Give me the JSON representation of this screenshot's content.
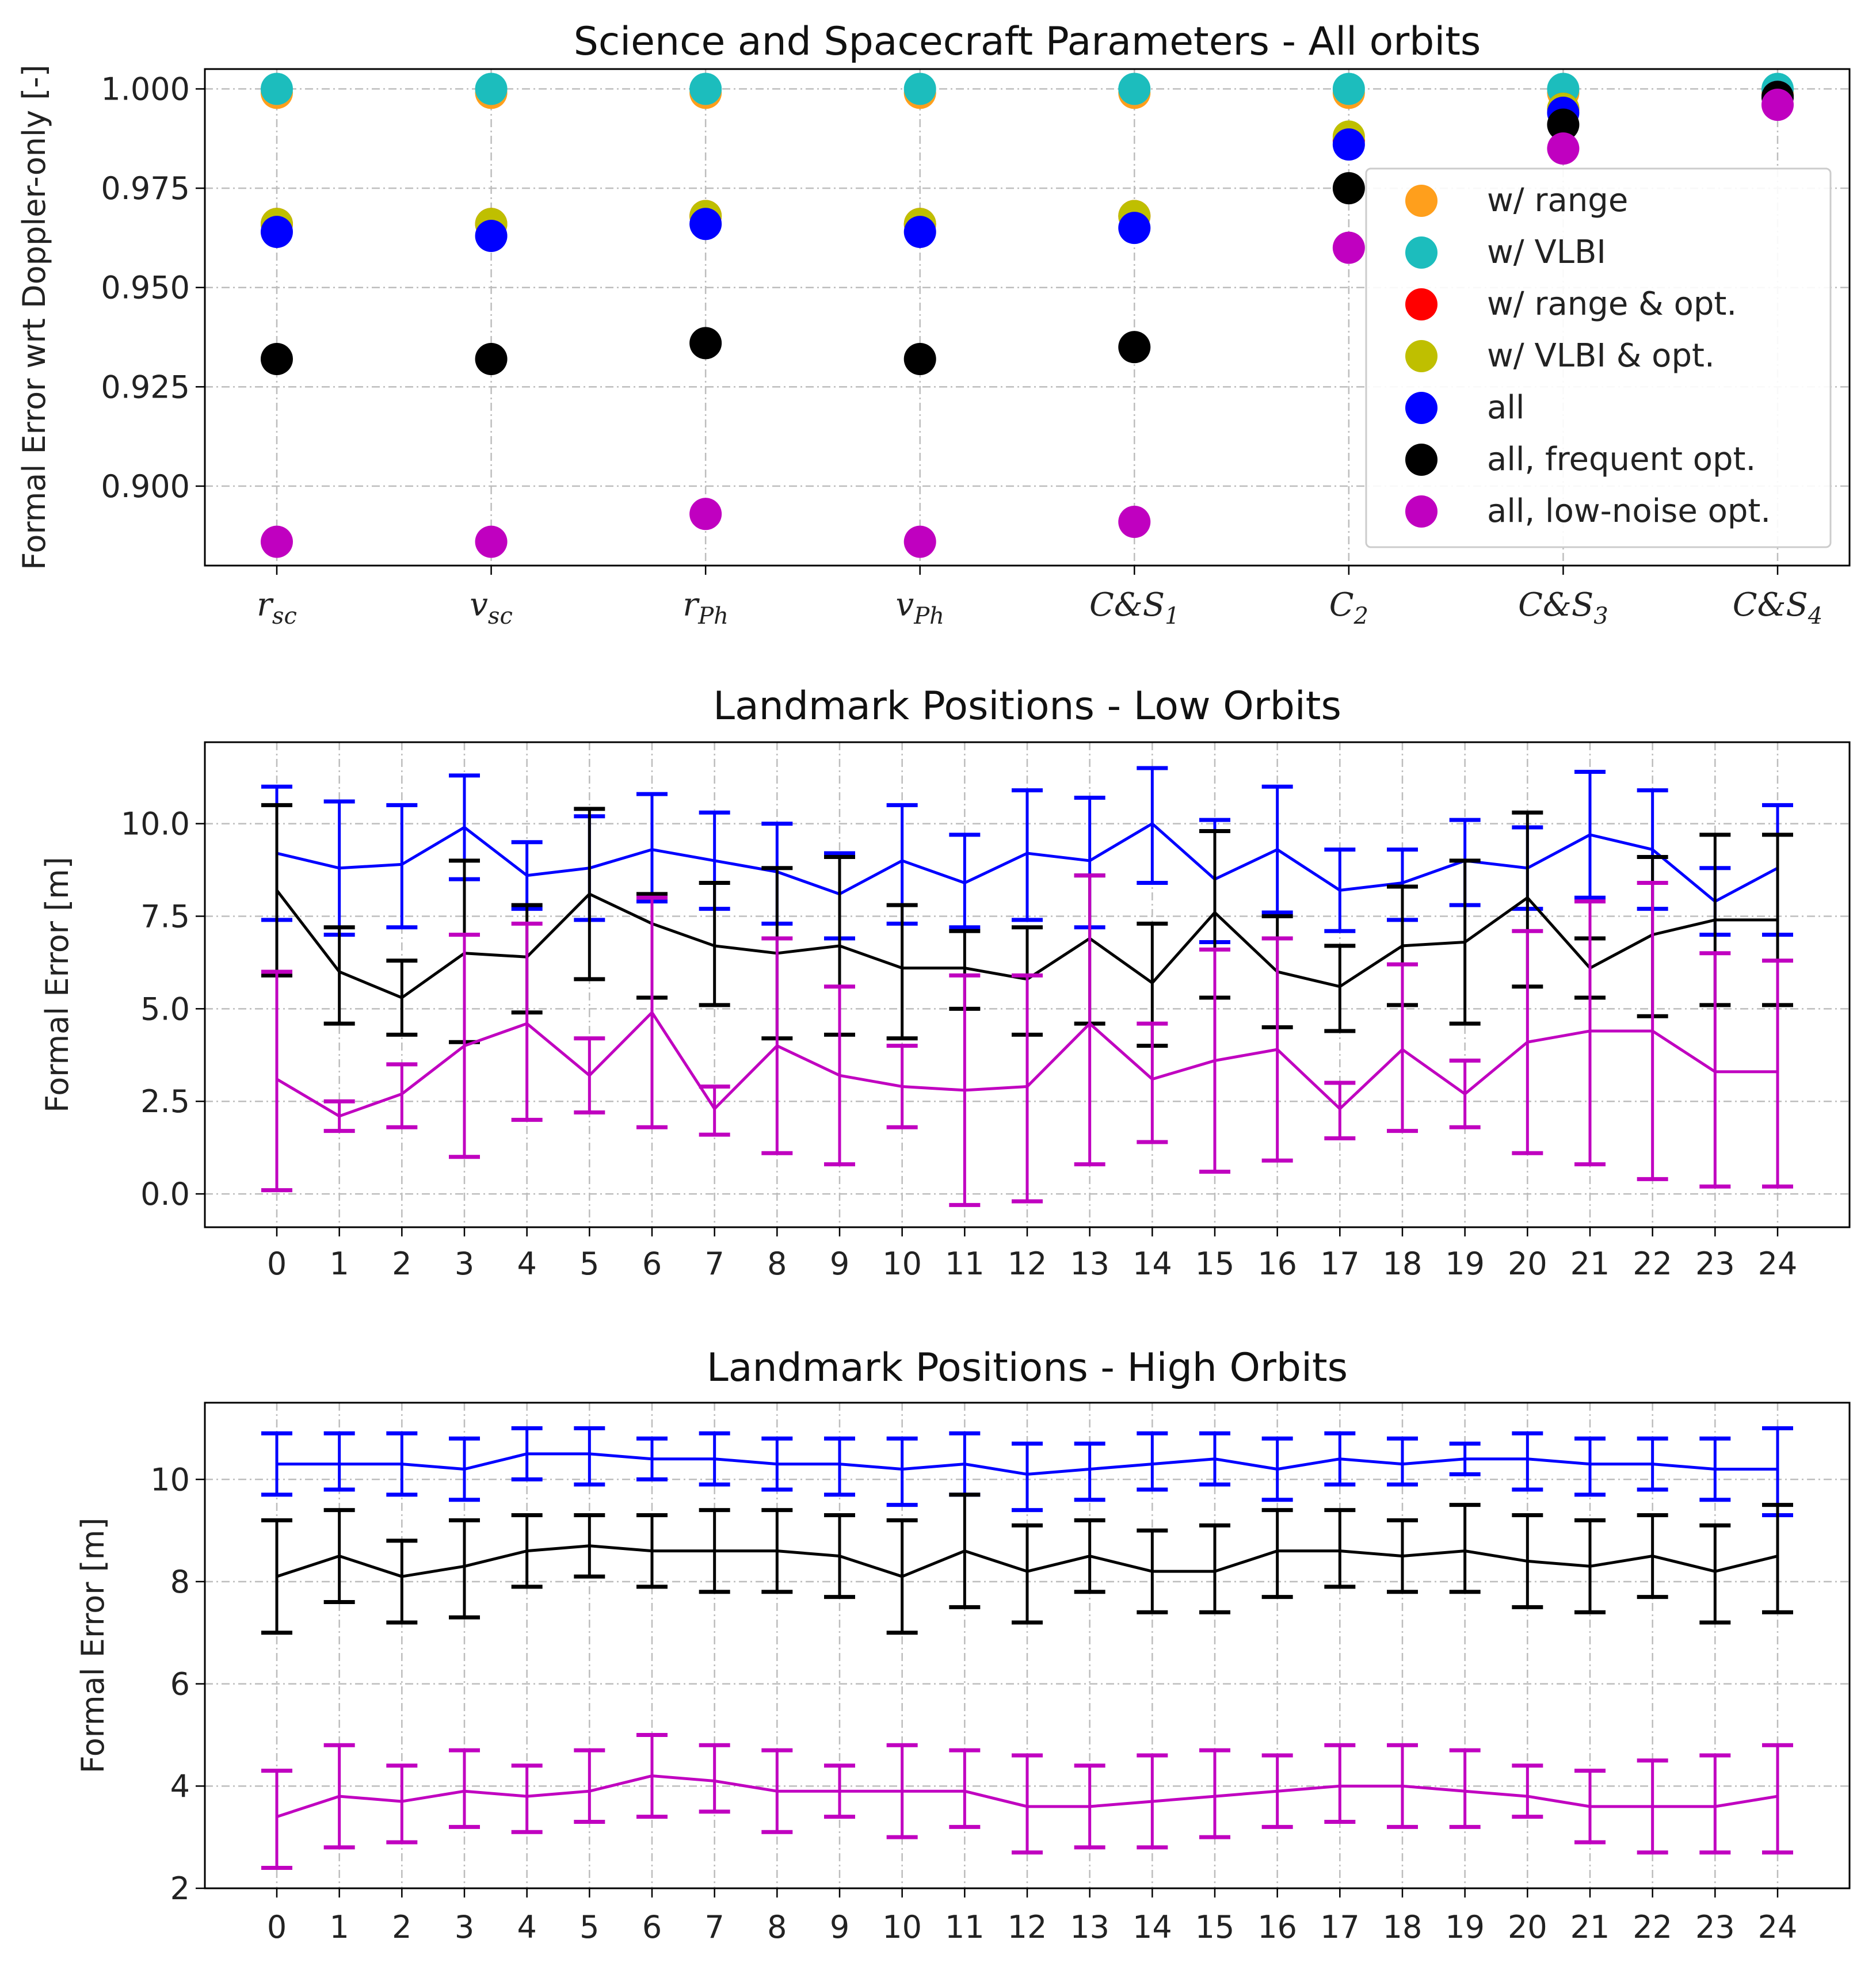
{
  "chart_data": [
    {
      "type": "scatter",
      "title": "Science and Spacecraft Parameters - All orbits",
      "xlabel": "",
      "ylabel": "Formal Error wrt Doppler-only [-]",
      "ylim": [
        0.88,
        1.005
      ],
      "yticks": [
        "0.900",
        "0.925",
        "0.950",
        "0.975",
        "1.000"
      ],
      "yticks_values": [
        0.9,
        0.925,
        0.95,
        0.975,
        1.0
      ],
      "categories": [
        {
          "main": "r",
          "sub": "sc"
        },
        {
          "main": "v",
          "sub": "sc"
        },
        {
          "main": "r",
          "sub": "Ph"
        },
        {
          "main": "v",
          "sub": "Ph"
        },
        {
          "main": "C&S",
          "sub": "1"
        },
        {
          "main": "C",
          "sub": "2"
        },
        {
          "main": "C&S",
          "sub": "3"
        },
        {
          "main": "C&S",
          "sub": "4"
        }
      ],
      "series": [
        {
          "name": "w/ range",
          "color": "#ff9f1c",
          "values": [
            0.999,
            0.999,
            0.999,
            0.999,
            0.999,
            0.999,
            0.999,
            0.999
          ]
        },
        {
          "name": "w/ VLBI",
          "color": "#1cbdbd",
          "values": [
            1.0,
            1.0,
            1.0,
            1.0,
            1.0,
            1.0,
            1.0,
            1.0
          ]
        },
        {
          "name": "w/ range & opt.",
          "color": "#ff0000",
          "values": [
            0.966,
            0.966,
            0.968,
            0.966,
            0.968,
            0.987,
            0.995,
            0.998
          ]
        },
        {
          "name": "w/ VLBI & opt.",
          "color": "#bfbf00",
          "values": [
            0.966,
            0.966,
            0.968,
            0.966,
            0.968,
            0.988,
            0.995,
            0.998
          ]
        },
        {
          "name": "all",
          "color": "#0000ff",
          "values": [
            0.964,
            0.963,
            0.966,
            0.964,
            0.965,
            0.986,
            0.994,
            0.998
          ]
        },
        {
          "name": "all, frequent opt.",
          "color": "#000000",
          "values": [
            0.932,
            0.932,
            0.936,
            0.932,
            0.935,
            0.975,
            0.991,
            0.998
          ]
        },
        {
          "name": "all, low-noise opt.",
          "color": "#c000c0",
          "values": [
            0.886,
            0.886,
            0.893,
            0.886,
            0.891,
            0.96,
            0.985,
            0.996
          ]
        }
      ],
      "legend_position": "upper-right"
    },
    {
      "type": "line",
      "title": "Landmark Positions - Low Orbits",
      "xlabel": "",
      "ylabel": "Formal Error [m]",
      "ylim": [
        -0.9,
        12.2
      ],
      "yticks": [
        "0.0",
        "2.5",
        "5.0",
        "7.5",
        "10.0"
      ],
      "yticks_values": [
        0,
        2.5,
        5,
        7.5,
        10
      ],
      "x": [
        0,
        1,
        2,
        3,
        4,
        5,
        6,
        7,
        8,
        9,
        10,
        11,
        12,
        13,
        14,
        15,
        16,
        17,
        18,
        19,
        20,
        21,
        22,
        23,
        24
      ],
      "series": [
        {
          "name": "all",
          "color": "#0000ff",
          "values": [
            9.2,
            8.8,
            8.9,
            9.9,
            8.6,
            8.8,
            9.3,
            9.0,
            8.7,
            8.1,
            9.0,
            8.4,
            9.2,
            9.0,
            10.0,
            8.5,
            9.3,
            8.2,
            8.4,
            9.0,
            8.8,
            9.7,
            9.3,
            7.9,
            8.8
          ],
          "lower": [
            7.4,
            7.0,
            7.2,
            8.5,
            7.7,
            7.4,
            7.9,
            7.7,
            7.3,
            6.9,
            7.3,
            7.2,
            7.4,
            7.2,
            8.4,
            6.8,
            7.6,
            7.1,
            7.4,
            7.8,
            7.7,
            8.0,
            7.7,
            7.0,
            7.0
          ],
          "upper": [
            11.0,
            10.6,
            10.5,
            11.3,
            9.5,
            10.2,
            10.8,
            10.3,
            10.0,
            9.2,
            10.5,
            9.7,
            10.9,
            10.7,
            11.5,
            10.1,
            11.0,
            9.3,
            9.3,
            10.1,
            9.9,
            11.4,
            10.9,
            8.8,
            10.5
          ]
        },
        {
          "name": "all, frequent opt.",
          "color": "#000000",
          "values": [
            8.2,
            6.0,
            5.3,
            6.5,
            6.4,
            8.1,
            7.3,
            6.7,
            6.5,
            6.7,
            6.1,
            6.1,
            5.8,
            6.9,
            5.7,
            7.6,
            6.0,
            5.6,
            6.7,
            6.8,
            8.0,
            6.1,
            7.0,
            7.4,
            7.4
          ],
          "lower": [
            5.9,
            4.6,
            4.3,
            4.1,
            4.9,
            5.8,
            5.3,
            5.1,
            4.2,
            4.3,
            4.2,
            5.0,
            4.3,
            4.6,
            4.0,
            5.3,
            4.5,
            4.4,
            5.1,
            4.6,
            5.6,
            5.3,
            4.8,
            5.1,
            5.1
          ],
          "upper": [
            10.5,
            7.2,
            6.3,
            9.0,
            7.8,
            10.4,
            8.1,
            8.4,
            8.8,
            9.1,
            7.8,
            7.1,
            7.2,
            8.6,
            7.3,
            9.8,
            7.5,
            6.7,
            8.3,
            9.0,
            10.3,
            6.9,
            9.1,
            9.7,
            9.7
          ]
        },
        {
          "name": "all, low-noise opt.",
          "color": "#c000c0",
          "values": [
            3.1,
            2.1,
            2.7,
            4.0,
            4.6,
            3.2,
            4.9,
            2.3,
            4.0,
            3.2,
            2.9,
            2.8,
            2.9,
            4.6,
            3.1,
            3.6,
            3.9,
            2.3,
            3.9,
            2.7,
            4.1,
            4.4,
            4.4,
            3.3,
            3.3
          ],
          "lower": [
            0.1,
            1.7,
            1.8,
            1.0,
            2.0,
            2.2,
            1.8,
            1.6,
            1.1,
            0.8,
            1.8,
            -0.3,
            -0.2,
            0.8,
            1.4,
            0.6,
            0.9,
            1.5,
            1.7,
            1.8,
            1.1,
            0.8,
            0.4,
            0.2,
            0.2
          ],
          "upper": [
            6.0,
            2.5,
            3.5,
            7.0,
            7.3,
            4.2,
            8.0,
            2.9,
            6.9,
            5.6,
            4.0,
            5.9,
            5.9,
            8.6,
            4.6,
            6.6,
            6.9,
            3.0,
            6.2,
            3.6,
            7.1,
            7.9,
            8.4,
            6.5,
            6.3
          ]
        }
      ]
    },
    {
      "type": "line",
      "title": "Landmark Positions - High Orbits",
      "xlabel": "",
      "ylabel": "Formal Error [m]",
      "ylim": [
        2.0,
        11.5
      ],
      "yticks": [
        "2",
        "4",
        "6",
        "8",
        "10"
      ],
      "yticks_values": [
        2,
        4,
        6,
        8,
        10
      ],
      "x": [
        0,
        1,
        2,
        3,
        4,
        5,
        6,
        7,
        8,
        9,
        10,
        11,
        12,
        13,
        14,
        15,
        16,
        17,
        18,
        19,
        20,
        21,
        22,
        23,
        24
      ],
      "series": [
        {
          "name": "all",
          "color": "#0000ff",
          "values": [
            10.3,
            10.3,
            10.3,
            10.2,
            10.5,
            10.5,
            10.4,
            10.4,
            10.3,
            10.3,
            10.2,
            10.3,
            10.1,
            10.2,
            10.3,
            10.4,
            10.2,
            10.4,
            10.3,
            10.4,
            10.4,
            10.3,
            10.3,
            10.2,
            10.2
          ],
          "lower": [
            9.7,
            9.8,
            9.7,
            9.6,
            10.0,
            9.9,
            10.0,
            9.9,
            9.8,
            9.7,
            9.5,
            9.7,
            9.4,
            9.6,
            9.8,
            9.9,
            9.6,
            9.9,
            9.9,
            10.1,
            9.8,
            9.7,
            9.8,
            9.6,
            9.3
          ],
          "upper": [
            10.9,
            10.9,
            10.9,
            10.8,
            11.0,
            11.0,
            10.8,
            10.9,
            10.8,
            10.8,
            10.8,
            10.9,
            10.7,
            10.7,
            10.9,
            10.9,
            10.8,
            10.9,
            10.8,
            10.7,
            10.9,
            10.8,
            10.8,
            10.8,
            11.0
          ]
        },
        {
          "name": "all, frequent opt.",
          "color": "#000000",
          "values": [
            8.1,
            8.5,
            8.1,
            8.3,
            8.6,
            8.7,
            8.6,
            8.6,
            8.6,
            8.5,
            8.1,
            8.6,
            8.2,
            8.5,
            8.2,
            8.2,
            8.6,
            8.6,
            8.5,
            8.6,
            8.4,
            8.3,
            8.5,
            8.2,
            8.5
          ],
          "lower": [
            7.0,
            7.6,
            7.2,
            7.3,
            7.9,
            8.1,
            7.9,
            7.8,
            7.8,
            7.7,
            7.0,
            7.5,
            7.2,
            7.8,
            7.4,
            7.4,
            7.7,
            7.9,
            7.8,
            7.8,
            7.5,
            7.4,
            7.7,
            7.2,
            7.4
          ],
          "upper": [
            9.2,
            9.4,
            8.8,
            9.2,
            9.3,
            9.3,
            9.3,
            9.4,
            9.4,
            9.3,
            9.2,
            9.7,
            9.1,
            9.2,
            9.0,
            9.1,
            9.4,
            9.4,
            9.2,
            9.5,
            9.3,
            9.2,
            9.3,
            9.1,
            9.5
          ]
        },
        {
          "name": "all, low-noise opt.",
          "color": "#c000c0",
          "values": [
            3.4,
            3.8,
            3.7,
            3.9,
            3.8,
            3.9,
            4.2,
            4.1,
            3.9,
            3.9,
            3.9,
            3.9,
            3.6,
            3.6,
            3.7,
            3.8,
            3.9,
            4.0,
            4.0,
            3.9,
            3.8,
            3.6,
            3.6,
            3.6,
            3.8
          ],
          "lower": [
            2.4,
            2.8,
            2.9,
            3.2,
            3.1,
            3.3,
            3.4,
            3.5,
            3.1,
            3.4,
            3.0,
            3.2,
            2.7,
            2.8,
            2.8,
            3.0,
            3.2,
            3.3,
            3.2,
            3.2,
            3.4,
            2.9,
            2.7,
            2.7,
            2.7
          ],
          "upper": [
            4.3,
            4.8,
            4.4,
            4.7,
            4.4,
            4.7,
            5.0,
            4.8,
            4.7,
            4.4,
            4.8,
            4.7,
            4.6,
            4.4,
            4.6,
            4.7,
            4.6,
            4.8,
            4.8,
            4.7,
            4.4,
            4.3,
            4.5,
            4.6,
            4.8
          ]
        }
      ]
    }
  ]
}
